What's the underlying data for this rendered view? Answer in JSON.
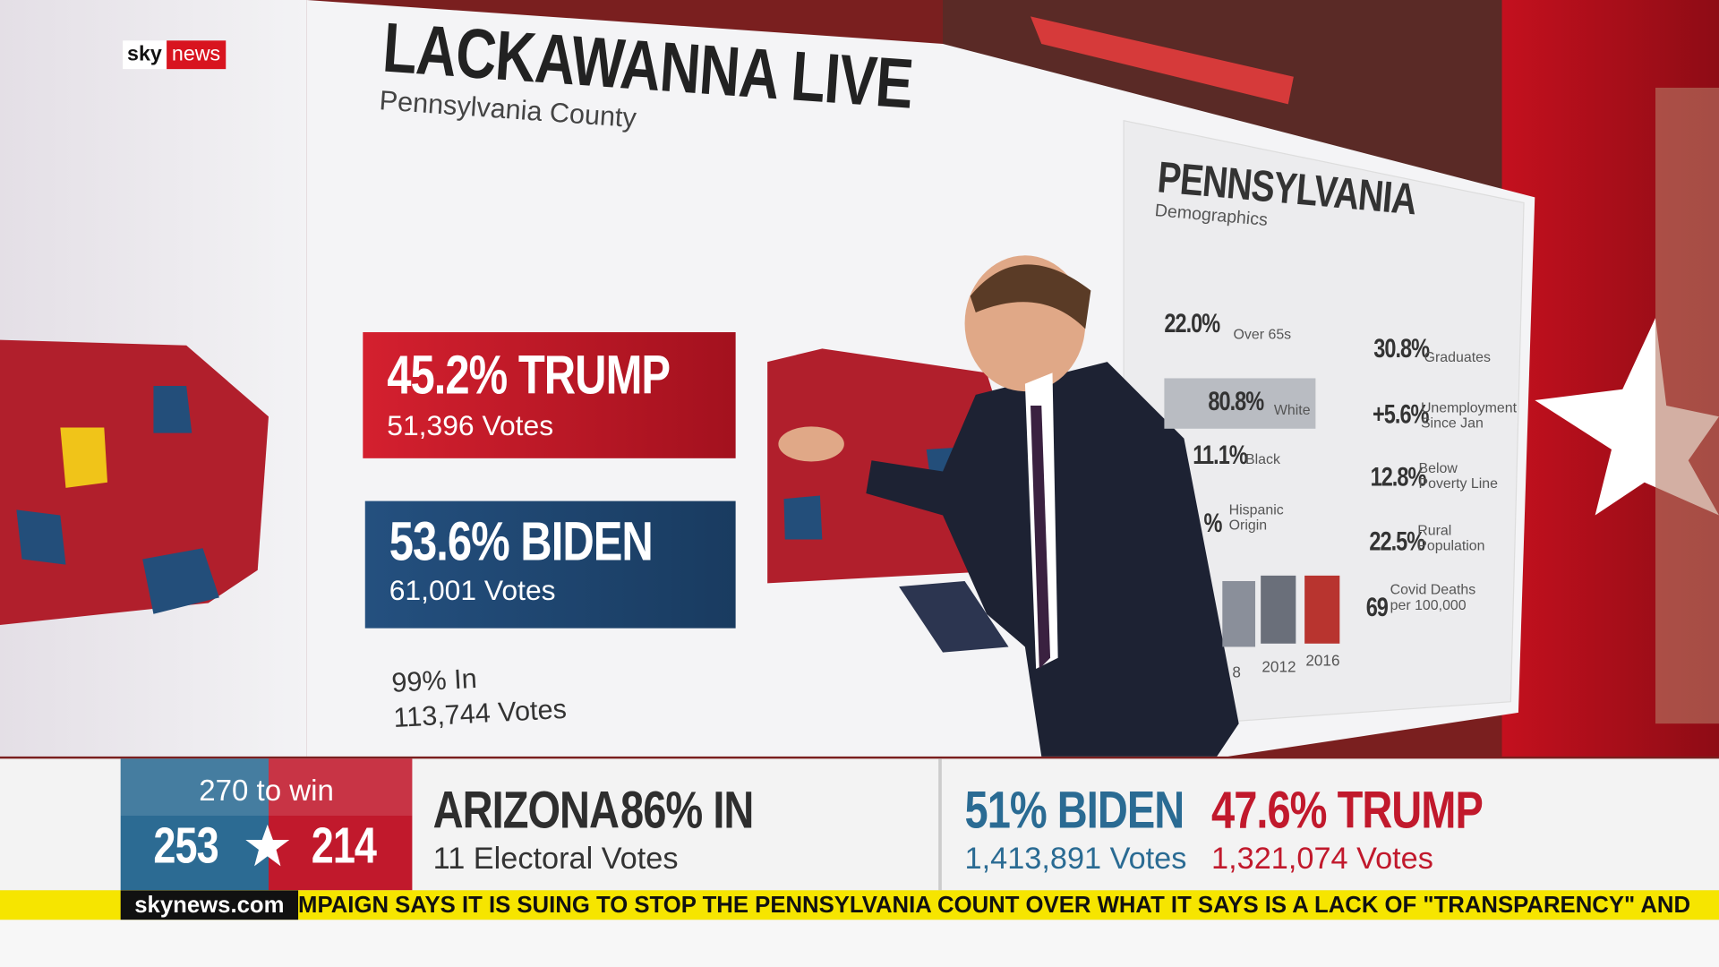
{
  "logo": {
    "sky": "sky",
    "news": "news"
  },
  "header": {
    "title": "LACKAWANNA LIVE",
    "subtitle": "Pennsylvania County"
  },
  "county_results": {
    "trump": {
      "headline": "45.2% TRUMP",
      "votes": "51,396 Votes"
    },
    "biden": {
      "headline": "53.6% BIDEN",
      "votes": "61,001 Votes"
    },
    "reporting": "99% In",
    "total_votes": "113,744 Votes"
  },
  "demographics": {
    "title": "PENNSYLVANIA",
    "subtitle": "Demographics",
    "left": [
      {
        "value": "22.0%",
        "label": "Over 65s"
      },
      {
        "value": "80.8%",
        "label": "White"
      },
      {
        "value": "11.1%",
        "label": "Black"
      },
      {
        "value": "%",
        "label": "Hispanic Origin"
      }
    ],
    "right": [
      {
        "value": "30.8%",
        "label": "Graduates"
      },
      {
        "value": "+5.6%",
        "label": "Unemployment Since Jan"
      },
      {
        "value": "12.8%",
        "label": "Below Poverty Line"
      },
      {
        "value": "22.5%",
        "label": "Rural Population"
      },
      {
        "value": "69",
        "label": "Covid Deaths per 100,000"
      }
    ],
    "years": [
      "8",
      "2012",
      "2016"
    ]
  },
  "lower_third": {
    "tally": {
      "caption": "270 to win",
      "biden": "253",
      "trump": "214"
    },
    "state": {
      "name": "ARIZONA",
      "reporting": "86% IN",
      "electoral_votes": "11 Electoral Votes"
    },
    "biden": {
      "headline": "51% BIDEN",
      "votes": "1,413,891 Votes"
    },
    "trump": {
      "headline": "47.6% TRUMP",
      "votes": "1,321,074 Votes"
    }
  },
  "ticker": {
    "site": "skynews.com",
    "text": "MPAIGN SAYS IT IS SUING TO STOP THE PENNSYLVANIA COUNT OVER WHAT IT SAYS IS A LACK OF \"TRANSPARENCY\" AND"
  }
}
